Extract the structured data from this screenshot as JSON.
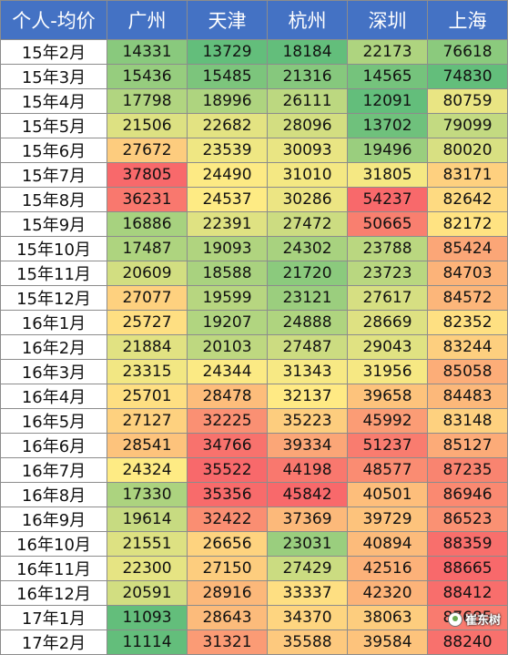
{
  "chart_data": {
    "type": "heatmap",
    "corner_label": "个人-均价",
    "columns": [
      "广州",
      "天津",
      "杭州",
      "深圳",
      "上海"
    ],
    "rows": [
      "15年2月",
      "15年3月",
      "15年4月",
      "15年5月",
      "15年6月",
      "15年7月",
      "15年8月",
      "15年9月",
      "15年10月",
      "15年11月",
      "15年12月",
      "16年1月",
      "16年2月",
      "16年3月",
      "16年4月",
      "16年5月",
      "16年6月",
      "16年7月",
      "16年8月",
      "16年9月",
      "16年10月",
      "16年11月",
      "16年12月",
      "17年1月",
      "17年2月"
    ],
    "values": [
      [
        14331,
        13729,
        18184,
        22173,
        76618
      ],
      [
        15436,
        15485,
        21316,
        14565,
        74830
      ],
      [
        17798,
        18996,
        26111,
        12091,
        80759
      ],
      [
        21506,
        22682,
        28096,
        13702,
        79099
      ],
      [
        27672,
        23539,
        30093,
        19496,
        80020
      ],
      [
        37805,
        24490,
        31010,
        31805,
        83171
      ],
      [
        36231,
        24537,
        30286,
        54237,
        82642
      ],
      [
        16886,
        22391,
        27472,
        50665,
        82172
      ],
      [
        17487,
        19093,
        24302,
        23788,
        85424
      ],
      [
        20609,
        18588,
        21720,
        23723,
        84703
      ],
      [
        27077,
        19599,
        23121,
        27617,
        84572
      ],
      [
        25727,
        19207,
        24888,
        28669,
        82352
      ],
      [
        21884,
        20103,
        27487,
        29043,
        83244
      ],
      [
        23315,
        24344,
        31343,
        31956,
        85058
      ],
      [
        25701,
        28478,
        32137,
        39658,
        84483
      ],
      [
        27127,
        32225,
        35223,
        45992,
        83148
      ],
      [
        28541,
        34766,
        39334,
        51237,
        85127
      ],
      [
        24324,
        35522,
        44198,
        48577,
        87235
      ],
      [
        17330,
        35356,
        45842,
        40501,
        86946
      ],
      [
        19614,
        32422,
        37369,
        39729,
        86523
      ],
      [
        21551,
        26656,
        23031,
        40894,
        88359
      ],
      [
        22300,
        27150,
        27429,
        42516,
        88665
      ],
      [
        20591,
        28916,
        33337,
        42320,
        88412
      ],
      [
        11093,
        28643,
        34370,
        38063,
        87685
      ],
      [
        11114,
        31321,
        35588,
        39584,
        88240
      ]
    ],
    "color_scale": {
      "scope": "per-column",
      "low": "#63be7b",
      "mid": "#ffeb84",
      "high": "#f8696b"
    },
    "header_colors": {
      "background": "#4472c4",
      "text": "#ffffff"
    }
  },
  "watermark": {
    "text": "崔东树"
  }
}
